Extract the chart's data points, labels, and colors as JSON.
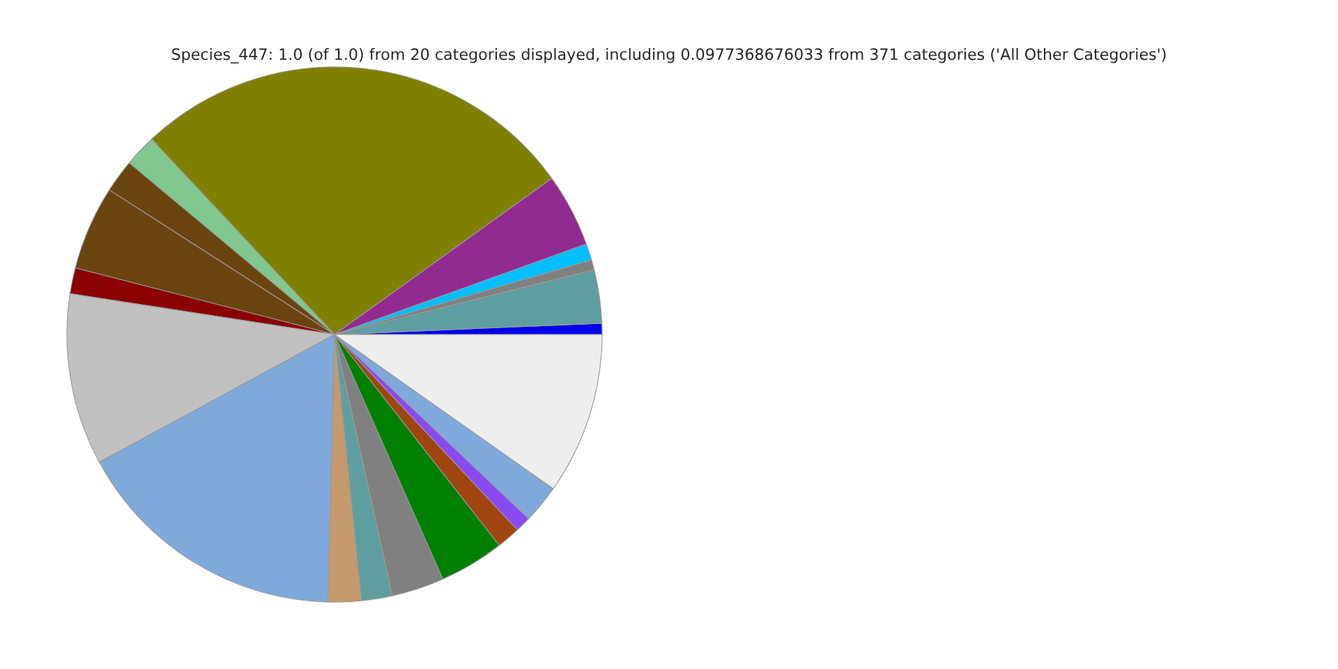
{
  "chart_data": {
    "type": "pie",
    "title": "Species_447: 1.0 (of 1.0) from 20 categories displayed, including 0.0977368676033 from 371 categories ('All Other Categories')",
    "categories": [
      null,
      null,
      null,
      null,
      null,
      null,
      null,
      null,
      null,
      null,
      null,
      null,
      null,
      null,
      null,
      null,
      null,
      null,
      null,
      null
    ],
    "values": [
      0.67,
      3.22,
      0.61,
      1.0,
      4.42,
      27.06,
      1.94,
      2.0,
      5.08,
      1.56,
      10.36,
      16.69,
      2.0,
      1.86,
      3.17,
      3.92,
      1.42,
      0.94,
      2.31,
      9.77
    ],
    "colors": [
      "#0000ee",
      "#5f9ea0",
      "#808080",
      "#00bfff",
      "#912b91",
      "#808000",
      "#80c890",
      "#6b4510",
      "#6b4510",
      "#8b0000",
      "#c0c0c0",
      "#7fa9db",
      "#c49a6c",
      "#5f9ea0",
      "#808080",
      "#008000",
      "#a0450f",
      "#8a4af3",
      "#7fa9db",
      "#eeeeee"
    ]
  }
}
